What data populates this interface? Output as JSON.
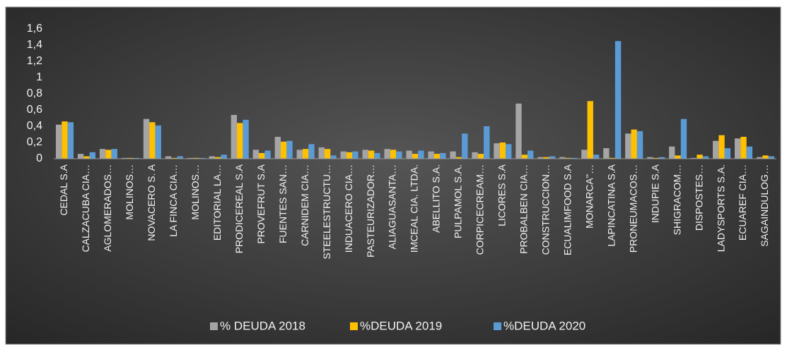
{
  "chart_data": {
    "type": "bar",
    "categories": [
      "CEDAL S.A",
      "CALZACUBA CIA…",
      "AGLOMERADOS…",
      "MOLINOS…",
      "NOVACERO S. A",
      "LA FINCA CIA…",
      "MOLINOS…",
      "EDITORIAL LA…",
      "PRODICEREAL S.A",
      "PROVEFRUT S.A",
      "FUENTES SAN…",
      "CARNIDEM CIA…",
      "STEELESTRUCTU…",
      "INDUACERO CIA…",
      "PASTEURIZADOR…",
      "ALIAGUASANTA…",
      "IMCEAL CIA. LTDA.",
      "ABELLITO S.A.",
      "PULPAMOL S.A.",
      "CORPICECREAM…",
      "LICORES S.A",
      "PROBALBEN CIA…",
      "CONSTRUCCION…",
      "ECUALIMFOOD S.A",
      "MONARCA''…",
      "LAPINCATINA S.A",
      "PRONEUMACOS…",
      "INDUPIE S.A",
      "SHIGRACOM…",
      "DISPOSTES…",
      "LADYSPORTS S.A.",
      "ECUAREF CIA…",
      "SAGAINDULOG…"
    ],
    "series": [
      {
        "name": "% DEUDA 2018",
        "color": "#a5a5a5",
        "values": [
          0.42,
          0.06,
          0.12,
          0.01,
          0.49,
          0.03,
          0.01,
          0.03,
          0.54,
          0.11,
          0.27,
          0.11,
          0.14,
          0.09,
          0.11,
          0.12,
          0.1,
          0.09,
          0.09,
          0.08,
          0.19,
          0.68,
          0.02,
          0.02,
          0.11,
          0.13,
          0.31,
          0.02,
          0.15,
          0.01,
          0.22,
          0.25,
          0.02
        ]
      },
      {
        "name": "%DEUDA 2019",
        "color": "#ffc000",
        "values": [
          0.46,
          0.03,
          0.11,
          0.01,
          0.45,
          0.01,
          0.01,
          0.02,
          0.44,
          0.07,
          0.21,
          0.12,
          0.12,
          0.08,
          0.1,
          0.11,
          0.06,
          0.06,
          0.02,
          0.06,
          0.2,
          0.05,
          0.02,
          0.01,
          0.71,
          0.01,
          0.36,
          0.01,
          0.04,
          0.05,
          0.29,
          0.27,
          0.04
        ]
      },
      {
        "name": "%DEUDA 2020",
        "color": "#5b9bd5",
        "values": [
          0.45,
          0.08,
          0.12,
          0.01,
          0.41,
          0.03,
          0.01,
          0.05,
          0.48,
          0.1,
          0.22,
          0.18,
          0.04,
          0.09,
          0.07,
          0.09,
          0.1,
          0.07,
          0.31,
          0.4,
          0.18,
          0.1,
          0.03,
          0.01,
          0.05,
          1.45,
          0.34,
          0.02,
          0.49,
          0.03,
          0.13,
          0.15,
          0.03
        ]
      }
    ],
    "ylim": [
      0,
      1.6
    ],
    "yticks": [
      0,
      {
        "value": 0.2,
        "label": "0,2"
      },
      {
        "value": 0.4,
        "label": "0,4"
      },
      {
        "value": 0.6,
        "label": "0,6"
      },
      {
        "value": 0.8,
        "label": "0,8"
      },
      1,
      {
        "value": 1.2,
        "label": "1,2"
      },
      {
        "value": 1.4,
        "label": "1,4"
      },
      {
        "value": 1.6,
        "label": "1,6"
      }
    ],
    "grid": false,
    "legend": "bottom"
  }
}
